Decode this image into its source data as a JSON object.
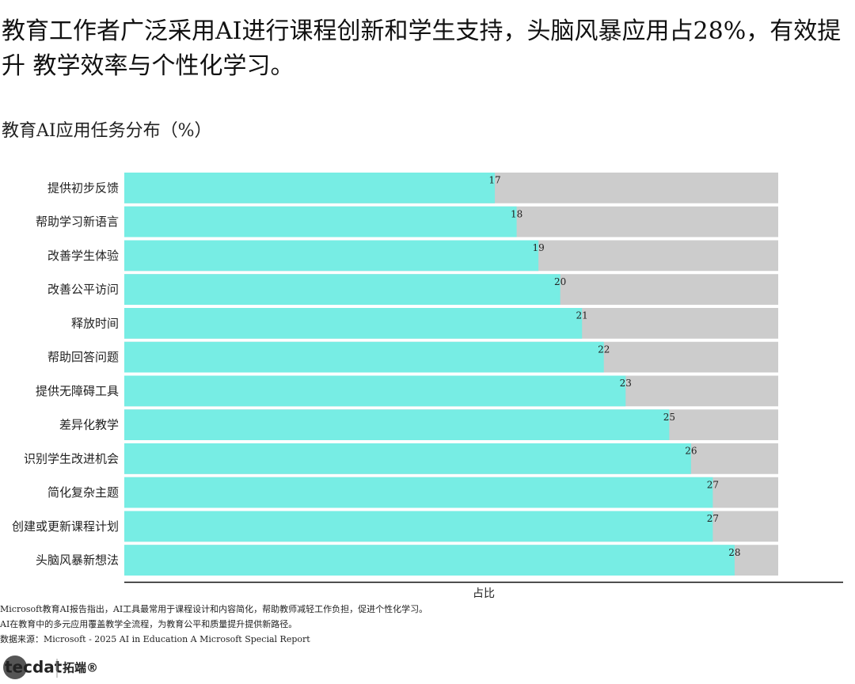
{
  "chart_data": {
    "type": "bar",
    "orientation": "horizontal",
    "title": "教育工作者广泛采用AI进行课程创新和学生支持，头脑风暴应用占28%，有效提升 教学效率与个性化学习。",
    "subtitle": "教育AI应用任务分布（%）",
    "x_label": "占比",
    "categories": [
      "提供初步反馈",
      "帮助学习新语言",
      "改善学生体验",
      "改善公平访问",
      "释放时间",
      "帮助回答问题",
      "提供无障碍工具",
      "差异化教学",
      "识别学生改进机会",
      "简化复杂主题",
      "创建或更新课程计划",
      "头脑风暴新想法"
    ],
    "values": [
      17,
      18,
      19,
      20,
      21,
      22,
      23,
      25,
      26,
      27,
      27,
      28
    ],
    "color": "#77ede4",
    "track_color": "#cccccc",
    "xlim": [
      0,
      30
    ],
    "notes": [
      "Microsoft教育AI报告指出，AI工具最常用于课程设计和内容简化，帮助教师减轻工作负担，促进个性化学习。",
      "AI在教育中的多元应用覆盖教学全流程，为教育公平和质量提升提供新路径。",
      "数据来源：Microsoft - 2025 AI in Education A Microsoft Special Report"
    ],
    "logo": "tecdat",
    "brand": "拓端®"
  }
}
